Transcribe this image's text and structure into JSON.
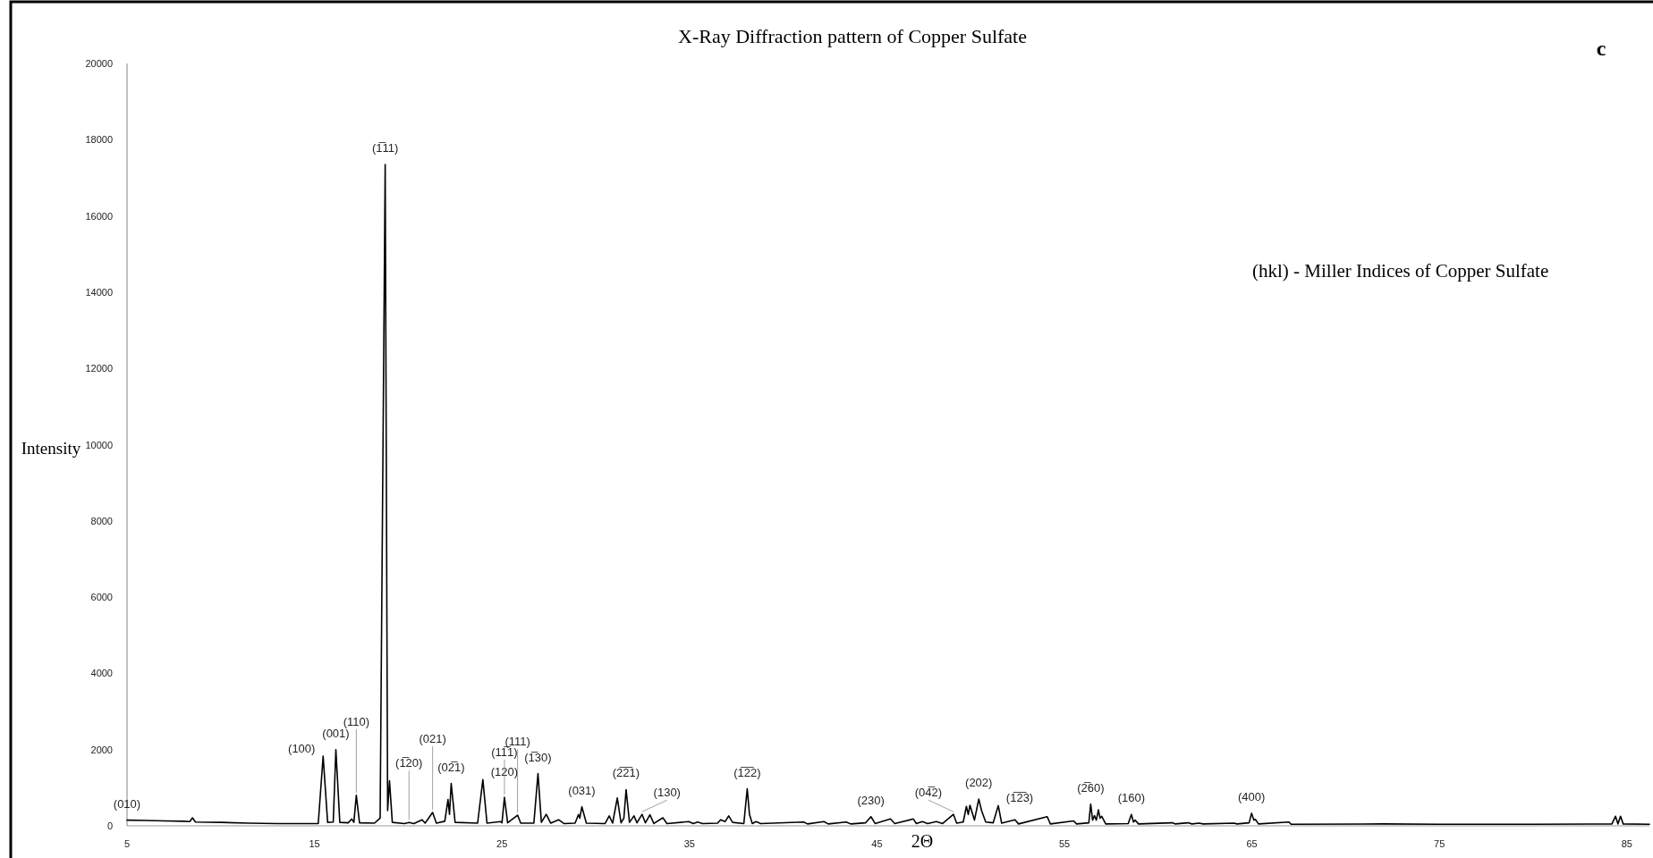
{
  "chart_data": {
    "type": "line",
    "title": "X-Ray Diffraction pattern of Copper Sulfate",
    "xlabel": "2Θ",
    "ylabel": "Intensity",
    "xlim": [
      5,
      86.2
    ],
    "xticks": [
      5,
      15,
      25,
      35,
      45,
      55,
      65,
      75,
      85
    ],
    "ylim": [
      0,
      20000
    ],
    "yticks": [
      0,
      2000,
      4000,
      6000,
      8000,
      10000,
      12000,
      14000,
      16000,
      18000,
      20000
    ],
    "grid": false,
    "marker": "none",
    "line_style": "solid",
    "series": [
      {
        "color": "#000000",
        "x": [
          5,
          6,
          7,
          8,
          8.35,
          8.49,
          8.65,
          10,
          11.5,
          13,
          14,
          15.2,
          15.46,
          15.7,
          16.0,
          16.14,
          16.35,
          16.8,
          16.99,
          17.1,
          17.23,
          17.4,
          18.2,
          18.5,
          18.77,
          18.9,
          19.0,
          19.15,
          19.8,
          20.04,
          20.3,
          20.74,
          20.9,
          21.3,
          21.5,
          21.95,
          22.12,
          22.2,
          22.29,
          22.5,
          23.7,
          23.98,
          24.2,
          24.94,
          25.0,
          25.13,
          25.3,
          25.83,
          26.0,
          26.7,
          26.92,
          27.1,
          27.36,
          27.6,
          28.02,
          28.3,
          28.9,
          29.08,
          29.15,
          29.26,
          29.5,
          30.5,
          30.72,
          30.9,
          31.15,
          31.35,
          31.5,
          31.62,
          31.8,
          32.04,
          32.2,
          32.47,
          32.65,
          32.89,
          33.1,
          33.58,
          33.8,
          34.96,
          35.2,
          35.43,
          35.7,
          36.5,
          36.66,
          36.9,
          37.09,
          37.3,
          37.9,
          38.08,
          38.2,
          38.35,
          38.55,
          38.8,
          41.09,
          41.3,
          42.17,
          42.4,
          43.36,
          43.6,
          44.4,
          44.68,
          44.9,
          45.72,
          45.95,
          46.94,
          47.1,
          47.42,
          47.7,
          48.17,
          48.5,
          49.08,
          49.25,
          49.6,
          49.77,
          49.87,
          49.96,
          50.2,
          50.43,
          50.58,
          50.8,
          51.2,
          51.47,
          51.65,
          52.36,
          52.55,
          54.08,
          54.25,
          55.49,
          55.65,
          56.3,
          56.4,
          56.5,
          56.6,
          56.7,
          56.81,
          56.9,
          56.99,
          57.2,
          58.4,
          58.57,
          58.68,
          58.77,
          58.95,
          60.74,
          60.9,
          61.59,
          61.8,
          62.18,
          62.4,
          64.05,
          64.2,
          64.85,
          64.98,
          65.1,
          65.18,
          65.35,
          66.97,
          67.1,
          72,
          75,
          80,
          84.2,
          84.39,
          84.52,
          84.66,
          84.8,
          86.2
        ],
        "values": [
          150,
          140,
          130,
          120,
          110,
          210,
          100,
          90,
          70,
          60,
          60,
          60,
          1830,
          90,
          100,
          2000,
          90,
          80,
          180,
          90,
          800,
          80,
          70,
          200,
          17350,
          400,
          1180,
          90,
          60,
          90,
          60,
          160,
          70,
          350,
          70,
          120,
          690,
          300,
          1110,
          90,
          70,
          1210,
          70,
          110,
          80,
          750,
          80,
          280,
          70,
          70,
          1370,
          90,
          300,
          70,
          160,
          60,
          70,
          300,
          200,
          500,
          70,
          60,
          260,
          70,
          730,
          80,
          200,
          950,
          90,
          260,
          80,
          300,
          80,
          290,
          60,
          210,
          60,
          110,
          60,
          100,
          60,
          70,
          160,
          110,
          260,
          90,
          60,
          970,
          300,
          60,
          110,
          60,
          100,
          50,
          110,
          50,
          100,
          50,
          80,
          240,
          60,
          180,
          60,
          180,
          60,
          110,
          60,
          110,
          60,
          300,
          70,
          100,
          510,
          300,
          540,
          150,
          700,
          400,
          100,
          80,
          530,
          70,
          160,
          50,
          240,
          50,
          130,
          50,
          80,
          570,
          150,
          270,
          150,
          420,
          200,
          250,
          50,
          60,
          300,
          100,
          150,
          50,
          80,
          50,
          80,
          50,
          70,
          50,
          70,
          50,
          80,
          330,
          150,
          170,
          50,
          100,
          40,
          50,
          40,
          40,
          50,
          250,
          50,
          250,
          50,
          40
        ]
      }
    ],
    "annotations": [
      "(hkl) - Miller Indices of Copper Sulfate",
      "c",
      {
        "text": "(010)",
        "x": 5,
        "y": 150
      },
      {
        "text": "(1̅11)",
        "x": 18.77,
        "y": 17350
      },
      {
        "text": "(100)",
        "x": 15.46,
        "y": 1830
      },
      {
        "text": "(001)",
        "x": 16.14,
        "y": 2000
      },
      {
        "text": "(110)",
        "x": 17.23,
        "y": 800
      },
      {
        "text": "(1̅20)",
        "x": 20.04,
        "y": 90
      },
      {
        "text": "(021)",
        "x": 21.3,
        "y": 350
      },
      {
        "text": "(02̅1)",
        "x": 22.29,
        "y": 1110
      },
      {
        "text": "(120)",
        "x": 23.98,
        "y": 1210
      },
      {
        "text": "(11̅1)",
        "x": 25.13,
        "y": 750
      },
      {
        "text": "(111)",
        "x": 25.83,
        "y": 280
      },
      {
        "text": "(1̅30)",
        "x": 26.92,
        "y": 1370
      },
      {
        "text": "(031)",
        "x": 29.26,
        "y": 500
      },
      {
        "text": "(2̅2̅1)",
        "x": 31.62,
        "y": 950
      },
      {
        "text": "(130)",
        "x": 32.47,
        "y": 300
      },
      {
        "text": "(1̅2̅2)",
        "x": 38.08,
        "y": 970
      },
      {
        "text": "(230)",
        "x": 44.68,
        "y": 240
      },
      {
        "text": "(04̅2)",
        "x": 49.08,
        "y": 300
      },
      {
        "text": "(202)",
        "x": 50.43,
        "y": 700
      },
      {
        "text": "(1̅2̅3)",
        "x": 51.47,
        "y": 530
      },
      {
        "text": "(2̅60)",
        "x": 56.4,
        "y": 570
      },
      {
        "text": "(160)",
        "x": 58.57,
        "y": 300
      },
      {
        "text": "(400)",
        "x": 64.98,
        "y": 330
      }
    ]
  }
}
